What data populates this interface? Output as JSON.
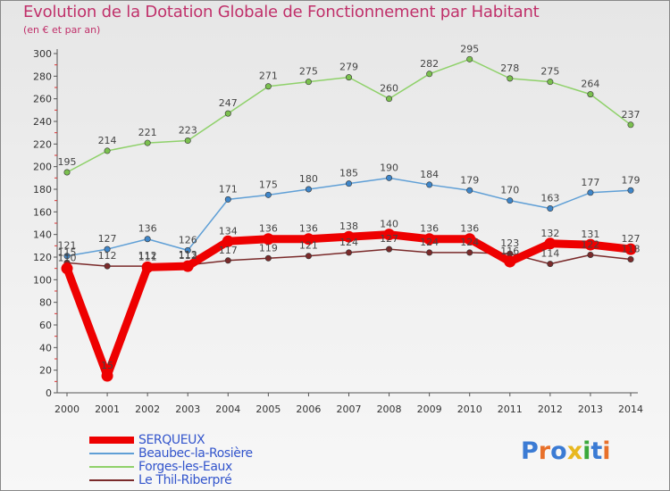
{
  "header": {
    "title": "Evolution de la Dotation Globale de Fonctionnement par Habitant",
    "subtitle": "(en € et par an)"
  },
  "brand": {
    "logo_text": "Proxiti",
    "letters": [
      "P",
      "r",
      "o",
      "x",
      "i",
      "t",
      "i"
    ],
    "colors": [
      "#3b7bd4",
      "#e8702a",
      "#3b7bd4",
      "#e8b820",
      "#3ba83b",
      "#3b7bd4",
      "#e8702a"
    ]
  },
  "chart_data": {
    "type": "line",
    "title": "Evolution de la Dotation Globale de Fonctionnement par Habitant",
    "subtitle": "(en € et par an)",
    "xlabel": "",
    "ylabel": "",
    "ylim": [
      0,
      300
    ],
    "yticks": [
      0,
      20,
      40,
      60,
      80,
      100,
      120,
      140,
      160,
      180,
      200,
      220,
      240,
      260,
      280,
      300
    ],
    "categories": [
      "2000",
      "2001",
      "2002",
      "2003",
      "2004",
      "2005",
      "2006",
      "2007",
      "2008",
      "2009",
      "2010",
      "2011",
      "2012",
      "2013",
      "2014"
    ],
    "grid": false,
    "legend_position": "bottom-left",
    "series": [
      {
        "name": "Le Thil-Riberpré",
        "color": "#7a2a2a",
        "marker": "#7a2a2a",
        "emphasis": false,
        "values": [
          115,
          112,
          112,
          113,
          117,
          119,
          121,
          124,
          127,
          124,
          124,
          123,
          114,
          122,
          118
        ]
      },
      {
        "name": "Forges-les-Eaux",
        "color": "#8fd16a",
        "marker": "#7bc04f",
        "emphasis": false,
        "values": [
          195,
          214,
          221,
          223,
          247,
          271,
          275,
          279,
          260,
          282,
          295,
          278,
          275,
          264,
          237
        ]
      },
      {
        "name": "Beaubec-la-Rosière",
        "color": "#5f9fd6",
        "marker": "#3f86c9",
        "emphasis": false,
        "values": [
          121,
          127,
          136,
          126,
          171,
          175,
          180,
          185,
          190,
          184,
          179,
          170,
          163,
          177,
          179
        ]
      },
      {
        "name": "SERQUEUX",
        "color": "#ee0000",
        "marker": "#ee0000",
        "emphasis": true,
        "values": [
          110,
          15,
          111,
          112,
          134,
          136,
          136,
          138,
          140,
          136,
          136,
          116,
          132,
          131,
          127
        ]
      }
    ],
    "legend_order": [
      "SERQUEUX",
      "Beaubec-la-Rosière",
      "Forges-les-Eaux",
      "Le Thil-Riberpré"
    ]
  }
}
